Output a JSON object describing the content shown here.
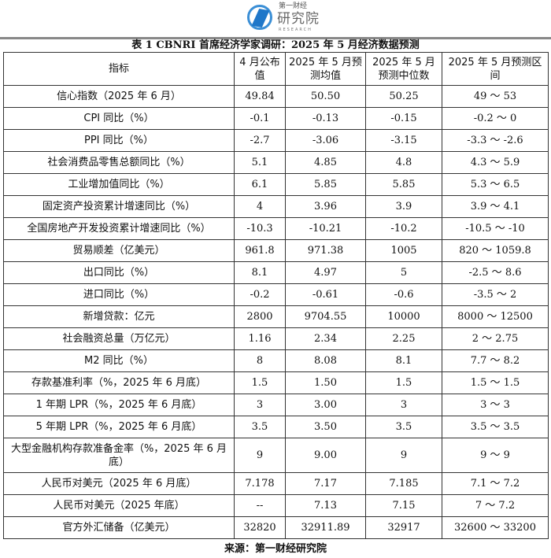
{
  "logo": {
    "line1": "第一财经",
    "line2": "研究院",
    "line3": "RESEARCH"
  },
  "title": "表 1 CBNRI 首席经济学家调研：2025 年 5 月经济数据预测",
  "headers": [
    "指标",
    "4 月公布值",
    "2025 年 5 月预测均值",
    "2025 年 5 月预测中位数",
    "2025 年 5 月预测区间"
  ],
  "rows": [
    [
      "信心指数（2025 年 6 月）",
      "49.84",
      "50.50",
      "50.25",
      "49 ～ 53"
    ],
    [
      "CPI 同比（%）",
      "-0.1",
      "-0.13",
      "-0.15",
      "-0.2 ～ 0"
    ],
    [
      "PPI 同比（%）",
      "-2.7",
      "-3.06",
      "-3.15",
      "-3.3 ～ -2.6"
    ],
    [
      "社会消费品零售总额同比（%）",
      "5.1",
      "4.85",
      "4.8",
      "4.3 ～ 5.9"
    ],
    [
      "工业增加值同比（%）",
      "6.1",
      "5.85",
      "5.85",
      "5.3 ～ 6.5"
    ],
    [
      "固定资产投资累计增速同比（%）",
      "4",
      "3.96",
      "3.9",
      "3.9 ～ 4.1"
    ],
    [
      "全国房地产开发投资累计增速同比（%）",
      "-10.3",
      "-10.21",
      "-10.2",
      "-10.5 ～ -10"
    ],
    [
      "贸易顺差（亿美元）",
      "961.8",
      "971.38",
      "1005",
      "820 ～ 1059.8"
    ],
    [
      "出口同比（%）",
      "8.1",
      "4.97",
      "5",
      "-2.5 ～ 8.6"
    ],
    [
      "进口同比（%）",
      "-0.2",
      "-0.61",
      "-0.6",
      "-3.5 ～ 2"
    ],
    [
      "新增贷款：亿元",
      "2800",
      "9704.55",
      "10000",
      "8000 ～ 12500"
    ],
    [
      "社会融资总量（万亿元）",
      "1.16",
      "2.34",
      "2.25",
      "2 ～ 2.75"
    ],
    [
      "M2 同比（%）",
      "8",
      "8.08",
      "8.1",
      "7.7 ～ 8.2"
    ],
    [
      "存款基准利率（%，2025 年 6 月底）",
      "1.5",
      "1.50",
      "1.5",
      "1.5 ～ 1.5"
    ],
    [
      "1 年期 LPR（%，2025 年 6 月底）",
      "3",
      "3.00",
      "3",
      "3 ～ 3"
    ],
    [
      "5 年期 LPR（%，2025 年 6 月底）",
      "3.5",
      "3.50",
      "3.5",
      "3.5 ～ 3.5"
    ],
    [
      "大型金融机构存款准备金率（%，2025 年 6 月底）",
      "9",
      "9.00",
      "9",
      "9 ～ 9"
    ],
    [
      "人民币对美元（2025 年 6 月底）",
      "7.178",
      "7.17",
      "7.185",
      "7.1 ～ 7.2"
    ],
    [
      "人民币对美元（2025 年底）",
      "--",
      "7.13",
      "7.15",
      "7 ～ 7.2"
    ],
    [
      "官方外汇储备（亿美元）",
      "32820",
      "32911.89",
      "32917",
      "32600 ～ 33200"
    ]
  ],
  "source": "来源：第一财经研究院"
}
